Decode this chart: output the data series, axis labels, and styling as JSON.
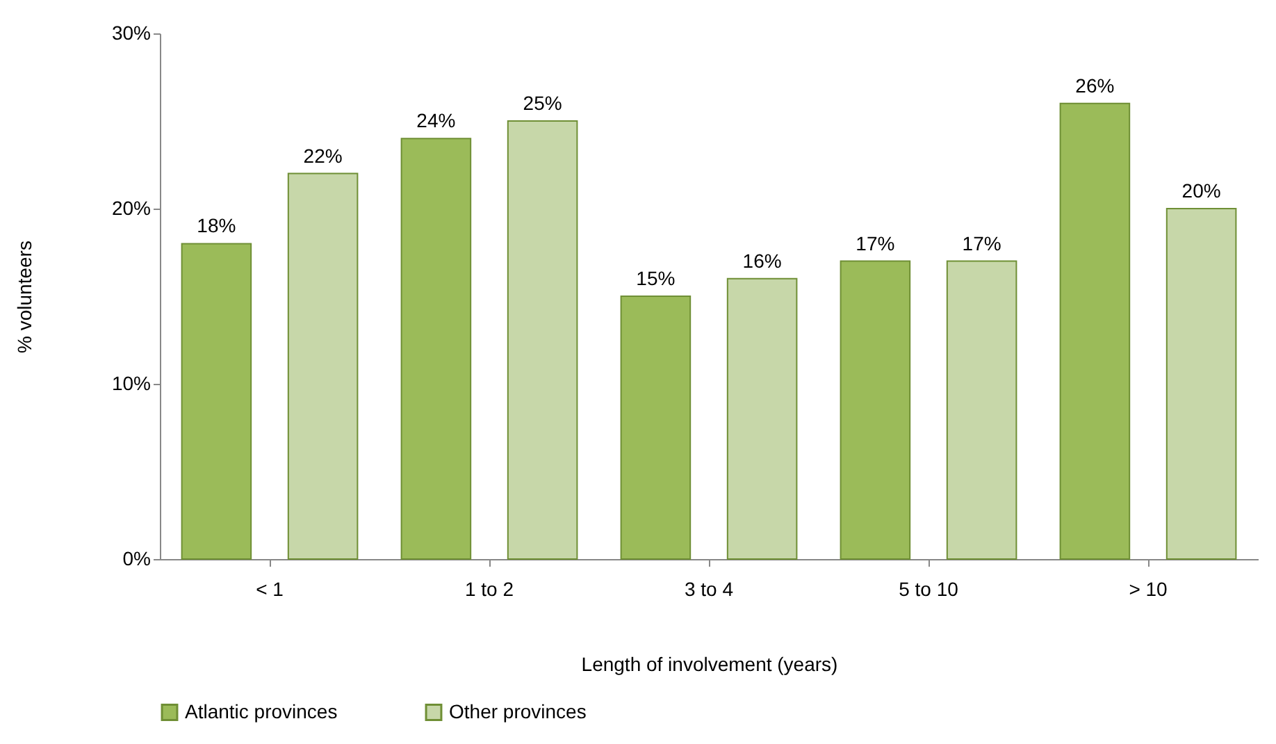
{
  "chart_data": {
    "type": "bar",
    "xlabel": "Length of involvement (years)",
    "ylabel": "% volunteers",
    "categories": [
      "< 1",
      "1 to 2",
      "3 to 4",
      "5 to 10",
      "> 10"
    ],
    "series": [
      {
        "name": "Atlantic provinces",
        "color": "#9bbb59",
        "values": [
          18,
          24,
          15,
          17,
          26
        ],
        "value_labels": [
          "18%",
          "24%",
          "15%",
          "17%",
          "26%"
        ]
      },
      {
        "name": "Other provinces",
        "color": "#c7d7a9",
        "values": [
          22,
          25,
          16,
          17,
          20
        ],
        "value_labels": [
          "22%",
          "25%",
          "16%",
          "17%",
          "20%"
        ]
      }
    ],
    "ylim": [
      0,
      30
    ],
    "yticks": [
      {
        "value": 0,
        "label": "0%"
      },
      {
        "value": 10,
        "label": "10%"
      },
      {
        "value": 20,
        "label": "20%"
      },
      {
        "value": 30,
        "label": "30%"
      }
    ],
    "grid": false,
    "legend": "bottom"
  }
}
